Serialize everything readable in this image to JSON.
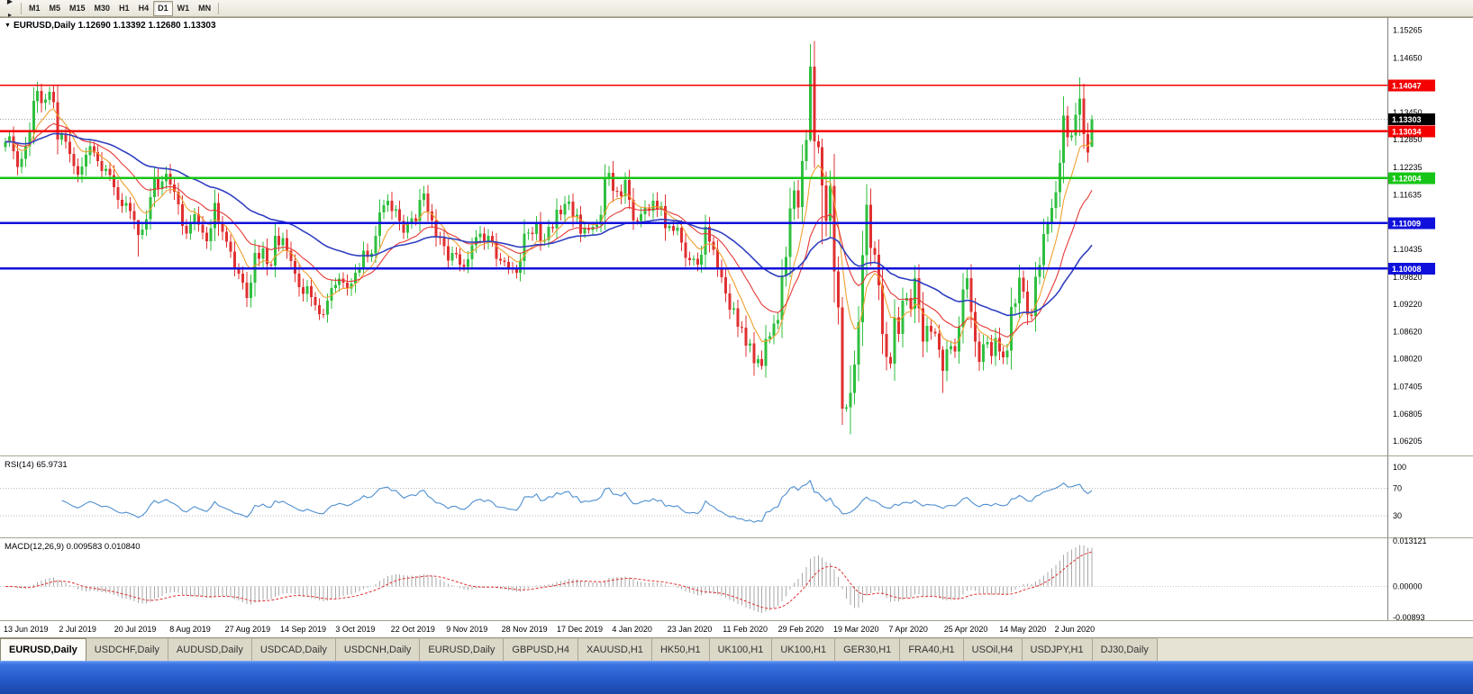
{
  "toolbar": {
    "icons": [
      {
        "name": "scroll-to-end-icon",
        "glyph": "▶"
      },
      {
        "name": "chart-shift-icon",
        "glyph": "▸"
      }
    ],
    "timeframes": [
      "M1",
      "M5",
      "M15",
      "M30",
      "H1",
      "H4",
      "D1",
      "W1",
      "MN"
    ],
    "active_timeframe": "D1"
  },
  "chart": {
    "window_icon": "▼",
    "title": "EURUSD,Daily 1.12690 1.13392 1.12680 1.13303"
  },
  "chart_data": {
    "type": "candlestick",
    "symbol": "EURUSD",
    "timeframe": "Daily",
    "ohlc_current": {
      "open": 1.1269,
      "high": 1.13392,
      "low": 1.1268,
      "close": 1.13303
    },
    "ylim": [
      1.0591,
      1.1549
    ],
    "closes": [
      1.128,
      1.1292,
      1.1259,
      1.1225,
      1.1243,
      1.127,
      1.1305,
      1.137,
      1.1392,
      1.1366,
      1.1373,
      1.139,
      1.1368,
      1.1285,
      1.1297,
      1.128,
      1.1253,
      1.1227,
      1.1208,
      1.1226,
      1.1251,
      1.127,
      1.1257,
      1.1238,
      1.1216,
      1.1221,
      1.1207,
      1.118,
      1.1152,
      1.1139,
      1.1145,
      1.1128,
      1.1108,
      1.1075,
      1.1087,
      1.111,
      1.1158,
      1.12,
      1.1176,
      1.1193,
      1.121,
      1.1186,
      1.117,
      1.1142,
      1.1095,
      1.1078,
      1.11,
      1.1121,
      1.1098,
      1.108,
      1.1061,
      1.109,
      1.1145,
      1.11,
      1.1082,
      1.106,
      1.1038,
      1.1002,
      1.099,
      1.097,
      1.0936,
      1.097,
      1.1035,
      1.1022,
      1.1045,
      1.101,
      1.1008,
      1.1073,
      1.1052,
      1.1068,
      1.104,
      1.1017,
      1.099,
      1.096,
      1.0945,
      1.0962,
      1.0938,
      1.092,
      1.09,
      1.0899,
      1.093,
      1.0958,
      1.0965,
      1.0979,
      1.097,
      1.0957,
      1.0968,
      1.0992,
      1.1004,
      1.104,
      1.1026,
      1.1034,
      1.1073,
      1.1125,
      1.114,
      1.115,
      1.1128,
      1.1131,
      1.1106,
      1.108,
      1.11,
      1.1112,
      1.1106,
      1.1152,
      1.1166,
      1.1127,
      1.1107,
      1.1072,
      1.1068,
      1.105,
      1.1018,
      1.1035,
      1.1032,
      1.101,
      1.1005,
      1.1021,
      1.1052,
      1.107,
      1.1078,
      1.1061,
      1.1073,
      1.1059,
      1.1022,
      1.1018,
      1.1015,
      1.1002,
      1.1,
      1.0992,
      1.1018,
      1.1078,
      1.108,
      1.1077,
      1.1103,
      1.106,
      1.1064,
      1.1093,
      1.109,
      1.113,
      1.112,
      1.1143,
      1.1148,
      1.1115,
      1.112,
      1.1078,
      1.1089,
      1.1086,
      1.1093,
      1.1098,
      1.112,
      1.1199,
      1.1212,
      1.1172,
      1.1171,
      1.116,
      1.1196,
      1.1152,
      1.1107,
      1.1106,
      1.1121,
      1.1134,
      1.1128,
      1.115,
      1.1132,
      1.1138,
      1.109,
      1.1095,
      1.1084,
      1.1091,
      1.1058,
      1.1024,
      1.1019,
      1.1022,
      1.101,
      1.1031,
      1.1093,
      1.106,
      1.1042,
      1.1002,
      1.0982,
      1.0946,
      1.091,
      1.0913,
      1.0873,
      1.0871,
      1.0831,
      1.0836,
      1.0792,
      1.0801,
      1.0786,
      1.0846,
      1.0852,
      1.088,
      1.0888,
      1.0985,
      1.1026,
      1.1133,
      1.1173,
      1.1136,
      1.1238,
      1.1284,
      1.1446,
      1.1281,
      1.1268,
      1.1184,
      1.1106,
      1.1183,
      1.0995,
      1.0915,
      1.0692,
      1.0695,
      1.0727,
      1.0789,
      1.0883,
      1.103,
      1.1141,
      1.1046,
      1.1031,
      1.0964,
      1.0857,
      1.0806,
      1.0791,
      1.0893,
      1.0857,
      1.093,
      1.0936,
      1.0912,
      1.098,
      1.0913,
      1.084,
      1.0875,
      1.0862,
      1.0858,
      1.0822,
      1.0775,
      1.0823,
      1.083,
      1.0818,
      1.0872,
      1.0955,
      1.098,
      1.0905,
      1.084,
      1.0795,
      1.0834,
      1.0839,
      1.0808,
      1.0848,
      1.0818,
      1.0805,
      1.082,
      1.0916,
      1.0924,
      1.0981,
      1.095,
      1.0899,
      1.0896,
      1.0983,
      1.1009,
      1.1077,
      1.1101,
      1.1134,
      1.1169,
      1.1234,
      1.1338,
      1.129,
      1.1294,
      1.134,
      1.1375,
      1.1297,
      1.1257,
      1.133
    ],
    "open_overrides": {
      "270": 1.1269
    },
    "wick_overrides": {
      "8": [
        1.1412,
        1.1344
      ],
      "33": [
        1.1096,
        1.1027
      ],
      "188": [
        1.082,
        1.0778
      ],
      "200": [
        1.1495,
        1.128
      ],
      "203": [
        1.1287,
        1.1054
      ],
      "208": [
        1.0938,
        1.0656
      ],
      "210": [
        1.0787,
        1.0636
      ],
      "233": [
        1.083,
        1.0727
      ],
      "267": [
        1.1422,
        1.1293
      ],
      "270": [
        1.13392,
        1.1268
      ]
    },
    "axis_ticks": [
      "1.15265",
      "1.14650",
      "1.13450",
      "1.12850",
      "1.12235",
      "1.11635",
      "1.10435",
      "1.09820",
      "1.09220",
      "1.08620",
      "1.08020",
      "1.07405",
      "1.06805",
      "1.06205"
    ],
    "hlines": [
      {
        "value": 1.14047,
        "label": "1.14047",
        "color": "#f40000",
        "width": 1.6
      },
      {
        "value": 1.13034,
        "label": "1.13034",
        "color": "#f40000",
        "width": 2.2
      },
      {
        "value": 1.12004,
        "label": "1.12004",
        "color": "#16c516",
        "width": 2.2
      },
      {
        "value": 1.11009,
        "label": "1.11009",
        "color": "#1010dc",
        "width": 2.4
      },
      {
        "value": 1.10008,
        "label": "1.10008",
        "color": "#1010dc",
        "width": 2.4
      }
    ],
    "current_price": {
      "value": 1.13303,
      "label": "1.13303",
      "tag_color": "#000000"
    },
    "moving_averages": [
      {
        "period": 8,
        "color": "#f0a030"
      },
      {
        "period": 20,
        "color": "#e53935"
      },
      {
        "period": 50,
        "color": "#3040c0"
      }
    ],
    "candle_colors": {
      "bull": "#2fbf3f",
      "bear": "#e03030"
    },
    "rsi": {
      "label": "RSI(14) 65.9731",
      "period": 14,
      "value": 65.9731,
      "levels": [
        "100",
        "70",
        "30"
      ],
      "level_values": [
        100,
        70,
        30
      ],
      "color": "#4e8fd0"
    },
    "macd": {
      "label": "MACD(12,26,9) 0.009583 0.010840",
      "fast": 12,
      "slow": 26,
      "signal": 9,
      "values": [
        0.009583,
        0.01084
      ],
      "axis_labels": [
        "0.013121",
        "0.00000",
        "-0.00893"
      ],
      "range": [
        -0.00893,
        0.013121
      ],
      "hist_color": "#a8a8a8",
      "signal_color": "#e03030"
    },
    "dates": [
      "13 Jun 2019",
      "2 Jul 2019",
      "20 Jul 2019",
      "8 Aug 2019",
      "27 Aug 2019",
      "14 Sep 2019",
      "3 Oct 2019",
      "22 Oct 2019",
      "9 Nov 2019",
      "28 Nov 2019",
      "17 Dec 2019",
      "4 Jan 2020",
      "23 Jan 2020",
      "11 Feb 2020",
      "29 Feb 2020",
      "19 Mar 2020",
      "7 Apr 2020",
      "25 Apr 2020",
      "14 May 2020",
      "2 Jun 2020"
    ]
  },
  "tabs": {
    "items": [
      "EURUSD,Daily",
      "USDCHF,Daily",
      "AUDUSD,Daily",
      "USDCAD,Daily",
      "USDCNH,Daily",
      "EURUSD,Daily",
      "GBPUSD,H4",
      "XAUUSD,H1",
      "HK50,H1",
      "UK100,H1",
      "UK100,H1",
      "GER30,H1",
      "FRA40,H1",
      "USOil,H4",
      "USDJPY,H1",
      "DJ30,Daily"
    ],
    "active_index": 0
  }
}
